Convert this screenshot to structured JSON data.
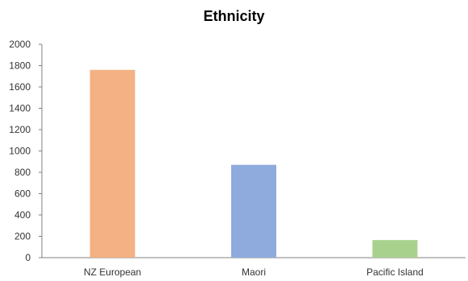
{
  "chart_data": {
    "type": "bar",
    "title": "Ethnicity",
    "categories": [
      "NZ European",
      "Maori",
      "Pacific Island"
    ],
    "values": [
      1760,
      870,
      165
    ],
    "colors": [
      "#F4B183",
      "#8FAADC",
      "#A9D18E"
    ],
    "ylim": [
      0,
      2000
    ],
    "yticks": [
      0,
      200,
      400,
      600,
      800,
      1000,
      1200,
      1400,
      1600,
      1800,
      2000
    ],
    "ytick_labels": [
      "0",
      "200",
      "400",
      "600",
      "800",
      "1000",
      "1200",
      "1400",
      "1600",
      "1800",
      "2000"
    ],
    "xlabel": "",
    "ylabel": "",
    "grid": false,
    "legend": false
  }
}
